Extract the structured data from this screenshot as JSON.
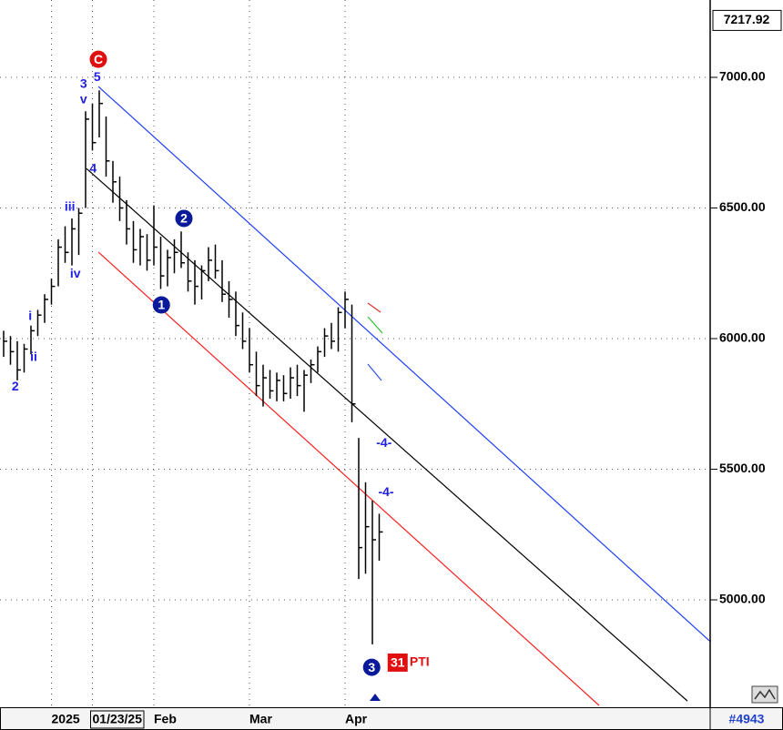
{
  "chart_data": {
    "type": "ohlc",
    "color": "#000000",
    "categories": [
      null,
      null,
      null,
      null,
      null,
      null,
      null,
      "2025",
      null,
      null,
      null,
      null,
      null,
      "01/23/25",
      null,
      null,
      null,
      null,
      null,
      null,
      null,
      null,
      "Feb",
      null,
      null,
      null,
      null,
      null,
      null,
      null,
      null,
      null,
      null,
      null,
      null,
      null,
      "Mar",
      null,
      null,
      null,
      null,
      null,
      null,
      null,
      null,
      null,
      null,
      null,
      null,
      null,
      "Apr",
      null,
      null,
      null,
      null,
      null
    ],
    "highlight_category": 13,
    "high": [
      6030,
      6010,
      5990,
      5980,
      6050,
      6110,
      6170,
      6230,
      6380,
      6430,
      6460,
      6500,
      6870,
      6900,
      6950,
      6850,
      6680,
      6620,
      6530,
      6450,
      6420,
      6400,
      6510,
      6390,
      6340,
      6380,
      6410,
      6330,
      6300,
      6280,
      6350,
      6360,
      6300,
      6220,
      6180,
      6100,
      6040,
      5950,
      5900,
      5880,
      5870,
      5860,
      5890,
      5900,
      5880,
      5920,
      5970,
      6040,
      6060,
      6120,
      6180,
      6130,
      5620,
      5450,
      5380,
      5330
    ],
    "low": [
      5930,
      5900,
      5840,
      5870,
      5940,
      6010,
      6060,
      6130,
      6200,
      6290,
      6280,
      6320,
      6500,
      6720,
      6770,
      6620,
      6520,
      6450,
      6360,
      6290,
      6280,
      6260,
      6280,
      6190,
      6200,
      6250,
      6270,
      6180,
      6130,
      6150,
      6220,
      6230,
      6140,
      6080,
      6010,
      5960,
      5870,
      5780,
      5740,
      5770,
      5760,
      5760,
      5770,
      5780,
      5720,
      5830,
      5870,
      5930,
      5960,
      5950,
      6040,
      5680,
      5080,
      5100,
      4830,
      5150
    ],
    "close": [
      5990,
      5950,
      5880,
      5960,
      6030,
      6090,
      6150,
      6200,
      6350,
      6330,
      6420,
      6480,
      6840,
      6750,
      6900,
      6680,
      6600,
      6500,
      6420,
      6340,
      6390,
      6300,
      6350,
      6240,
      6310,
      6330,
      6290,
      6220,
      6200,
      6260,
      6300,
      6260,
      6170,
      6150,
      6050,
      5990,
      5900,
      5820,
      5850,
      5800,
      5840,
      5790,
      5850,
      5820,
      5860,
      5900,
      5950,
      6010,
      5990,
      6100,
      6150,
      5750,
      5200,
      5280,
      5230,
      5260
    ],
    "ylim": [
      4596,
      7296
    ],
    "yticks": [
      {
        "value": 5000,
        "label": "5000.00"
      },
      {
        "value": 5500,
        "label": "5500.00"
      },
      {
        "value": 6000,
        "label": "6000.00"
      },
      {
        "value": 6500,
        "label": "6500.00"
      },
      {
        "value": 7000,
        "label": "7000.00"
      }
    ],
    "grid": true,
    "last_price": {
      "value": 7217.92,
      "label": "7217.92"
    },
    "bar_count_label": "#4943",
    "channels": [
      {
        "color": "#1f3fff",
        "x": [
          13.87,
          103.5
        ],
        "y": [
          6965,
          4840
        ]
      },
      {
        "color": "#000000",
        "x": [
          12.13,
          100.13
        ],
        "y": [
          6651,
          4613
        ]
      },
      {
        "color": "#ff2020",
        "x": [
          13.87,
          87.2
        ],
        "y": [
          6331,
          4596
        ]
      }
    ],
    "annotations": [
      {
        "text": "C",
        "x": 13.87,
        "y": 7069,
        "style": "circle",
        "color": "#e01010"
      },
      {
        "text": "5",
        "x": 13.7,
        "y": 6999,
        "style": "plain",
        "color": "#2020e0"
      },
      {
        "text": "3",
        "x": 11.7,
        "y": 6972,
        "style": "plain",
        "color": "#2020e0"
      },
      {
        "text": "v",
        "x": 11.7,
        "y": 6913,
        "style": "plain",
        "color": "#2020e0"
      },
      {
        "text": "4",
        "x": 13.1,
        "y": 6648,
        "style": "plain",
        "color": "#2020e0"
      },
      {
        "text": "iii",
        "x": 9.7,
        "y": 6502,
        "style": "plain",
        "color": "#2020e0"
      },
      {
        "text": "2",
        "x": 26.4,
        "y": 6460,
        "style": "circle",
        "color": "#0a1a9a"
      },
      {
        "text": "iv",
        "x": 10.5,
        "y": 6247,
        "style": "plain",
        "color": "#2020e0"
      },
      {
        "text": "1",
        "x": 23.1,
        "y": 6129,
        "style": "circle",
        "color": "#0a1a9a"
      },
      {
        "text": "i",
        "x": 3.9,
        "y": 6084,
        "style": "plain",
        "color": "#2020e0"
      },
      {
        "text": "ii",
        "x": 4.4,
        "y": 5927,
        "style": "plain",
        "color": "#2020e0"
      },
      {
        "text": "2",
        "x": 1.7,
        "y": 5815,
        "style": "plain",
        "color": "#2020e0"
      },
      {
        "text": "-4-",
        "x": 55.7,
        "y": 5599,
        "style": "plain",
        "color": "#2020e0"
      },
      {
        "text": "-4-",
        "x": 56.0,
        "y": 5411,
        "style": "plain",
        "color": "#2020e0"
      },
      {
        "text": "3",
        "x": 53.9,
        "y": 4742,
        "style": "circle",
        "color": "#0a1a9a"
      },
      {
        "text": "31",
        "x": 57.7,
        "y": 4760,
        "style": "box",
        "color": "#e01010"
      },
      {
        "text": "PTI",
        "x": 60.9,
        "y": 4760,
        "style": "plain",
        "color": "#e01010"
      }
    ]
  }
}
